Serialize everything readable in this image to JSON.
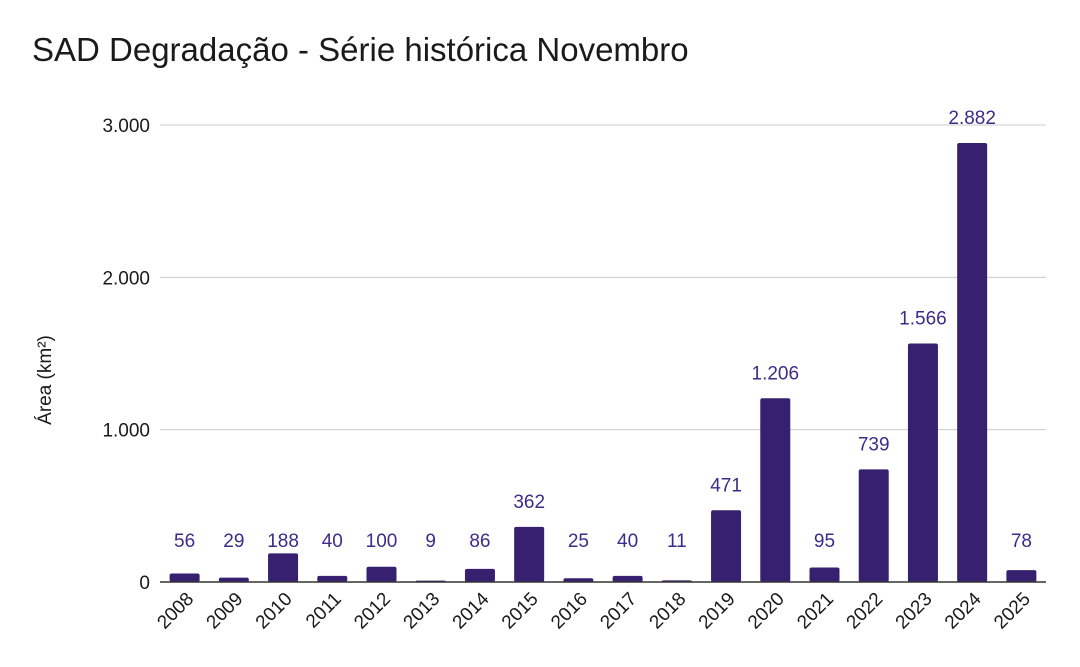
{
  "chart_data": {
    "type": "bar",
    "title": "SAD Degradação - Série histórica Novembro",
    "xlabel": "",
    "ylabel": "Área (km²)",
    "categories": [
      "2008",
      "2009",
      "2010",
      "2011",
      "2012",
      "2013",
      "2014",
      "2015",
      "2016",
      "2017",
      "2018",
      "2019",
      "2020",
      "2021",
      "2022",
      "2023",
      "2024",
      "2025"
    ],
    "values": [
      56,
      29,
      188,
      40,
      100,
      9,
      86,
      362,
      25,
      40,
      11,
      471,
      1206,
      95,
      739,
      1566,
      2882,
      78
    ],
    "value_labels": [
      "56",
      "29",
      "188",
      "40",
      "100",
      "9",
      "86",
      "362",
      "25",
      "40",
      "11",
      "471",
      "1.206",
      "95",
      "739",
      "1.566",
      "2.882",
      "78"
    ],
    "ylim": [
      0,
      3000
    ],
    "yticks": [
      0,
      1000,
      2000,
      3000
    ],
    "ytick_labels": [
      "0",
      "1.000",
      "2.000",
      "3.000"
    ],
    "grid": true,
    "legend": "none",
    "bar_color": "#36206f",
    "label_color": "#3d2b8c",
    "grid_color": "#cccccc",
    "axis_color": "#333333"
  }
}
